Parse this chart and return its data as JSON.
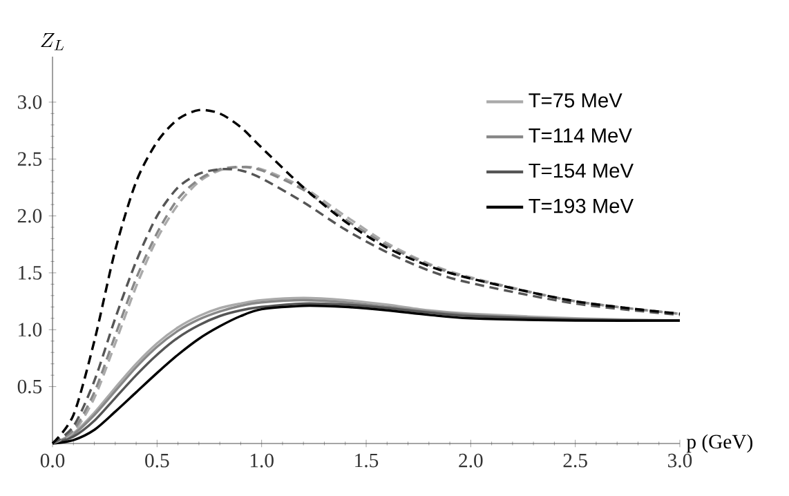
{
  "chart_data": {
    "type": "line",
    "xlabel": "p (GeV)",
    "ylabel": "Z_L",
    "xlim": [
      0,
      3.0
    ],
    "ylim": [
      0,
      3.4
    ],
    "xticks": [
      {
        "value": 0,
        "label": "0.0"
      },
      0.5,
      {
        "value": 1,
        "label": "1.0"
      },
      1.5,
      {
        "value": 2,
        "label": "2.0"
      },
      2.5,
      {
        "value": 3,
        "label": "3.0"
      }
    ],
    "yticks": [
      0.5,
      {
        "value": 1,
        "label": "1.0"
      },
      1.5,
      {
        "value": 2,
        "label": "2.0"
      },
      2.5,
      {
        "value": 3,
        "label": "3.0"
      }
    ],
    "x": [
      0,
      0.1,
      0.2,
      0.3,
      0.4,
      0.5,
      0.6,
      0.7,
      0.8,
      0.9,
      1.0,
      1.2,
      1.4,
      1.6,
      1.8,
      2.0,
      2.5,
      3.0
    ],
    "legend": "top right",
    "grid": false,
    "marker": "none",
    "series": [
      {
        "name": "T=75 MeV",
        "color": "#aaaaaa",
        "line_style": "solid",
        "values": [
          0,
          0.09,
          0.27,
          0.49,
          0.7,
          0.88,
          1.02,
          1.12,
          1.19,
          1.23,
          1.26,
          1.28,
          1.26,
          1.22,
          1.17,
          1.14,
          1.1,
          1.08
        ]
      },
      {
        "name": "T=114 MeV",
        "color": "#888888",
        "line_style": "solid",
        "values": [
          0,
          0.08,
          0.25,
          0.46,
          0.67,
          0.85,
          0.99,
          1.09,
          1.16,
          1.21,
          1.24,
          1.26,
          1.24,
          1.2,
          1.16,
          1.13,
          1.09,
          1.08
        ]
      },
      {
        "name": "T=154 MeV",
        "color": "#555555",
        "line_style": "solid",
        "values": [
          0,
          0.06,
          0.2,
          0.4,
          0.6,
          0.78,
          0.93,
          1.04,
          1.12,
          1.17,
          1.2,
          1.23,
          1.22,
          1.19,
          1.15,
          1.12,
          1.09,
          1.08
        ]
      },
      {
        "name": "T=193 MeV",
        "color": "#000000",
        "line_style": "solid",
        "values": [
          0,
          0.03,
          0.12,
          0.28,
          0.45,
          0.62,
          0.78,
          0.92,
          1.03,
          1.12,
          1.18,
          1.21,
          1.2,
          1.17,
          1.13,
          1.1,
          1.08,
          1.08
        ]
      },
      {
        "color": "#aaaaaa",
        "line_style": "dashed",
        "values": [
          0,
          0.1,
          0.4,
          0.88,
          1.38,
          1.8,
          2.1,
          2.3,
          2.4,
          2.43,
          2.41,
          2.25,
          2.0,
          1.76,
          1.58,
          1.46,
          1.25,
          1.14
        ]
      },
      {
        "color": "#888888",
        "line_style": "dashed",
        "values": [
          0,
          0.12,
          0.45,
          0.95,
          1.45,
          1.85,
          2.15,
          2.32,
          2.41,
          2.43,
          2.4,
          2.23,
          1.97,
          1.74,
          1.57,
          1.45,
          1.25,
          1.14
        ]
      },
      {
        "color": "#555555",
        "line_style": "dashed",
        "values": [
          0,
          0.15,
          0.55,
          1.1,
          1.6,
          2.0,
          2.25,
          2.37,
          2.41,
          2.4,
          2.33,
          2.12,
          1.88,
          1.68,
          1.52,
          1.41,
          1.23,
          1.13
        ]
      },
      {
        "color": "#000000",
        "line_style": "dashed",
        "values": [
          0,
          0.25,
          0.9,
          1.7,
          2.3,
          2.65,
          2.85,
          2.93,
          2.9,
          2.78,
          2.6,
          2.25,
          1.95,
          1.72,
          1.56,
          1.45,
          1.25,
          1.14
        ]
      }
    ]
  }
}
